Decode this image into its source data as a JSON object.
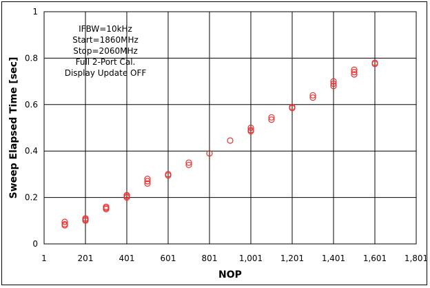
{
  "chart_data": {
    "type": "scatter",
    "xlabel": "NOP",
    "ylabel": "Sweep Elapsed Time [sec]",
    "xlim": [
      1,
      1801
    ],
    "ylim": [
      0,
      1
    ],
    "xticks": [
      1,
      201,
      401,
      601,
      801,
      1001,
      1201,
      1401,
      1601,
      1801
    ],
    "xtick_labels": [
      "1",
      "201",
      "401",
      "601",
      "801",
      "1,001",
      "1,201",
      "1,401",
      "1,601",
      "1,801"
    ],
    "yticks": [
      0,
      0.2,
      0.4,
      0.6,
      0.8,
      1
    ],
    "ytick_labels": [
      "0",
      "0.2",
      "0.4",
      "0.6",
      "0.8",
      "1"
    ],
    "grid": true,
    "marker_color": "#e8302f",
    "annotation": [
      "IFBW=10kHz",
      "Start=1860MHz",
      "Stop=2060MHz",
      "Full 2-Port Cal.",
      "Display Update OFF"
    ],
    "points": [
      {
        "x": 101,
        "y": 0.08
      },
      {
        "x": 101,
        "y": 0.085
      },
      {
        "x": 101,
        "y": 0.095
      },
      {
        "x": 201,
        "y": 0.1
      },
      {
        "x": 201,
        "y": 0.105
      },
      {
        "x": 201,
        "y": 0.11
      },
      {
        "x": 301,
        "y": 0.15
      },
      {
        "x": 301,
        "y": 0.155
      },
      {
        "x": 301,
        "y": 0.16
      },
      {
        "x": 401,
        "y": 0.2
      },
      {
        "x": 401,
        "y": 0.205
      },
      {
        "x": 401,
        "y": 0.21
      },
      {
        "x": 501,
        "y": 0.26
      },
      {
        "x": 501,
        "y": 0.27
      },
      {
        "x": 501,
        "y": 0.28
      },
      {
        "x": 601,
        "y": 0.295
      },
      {
        "x": 601,
        "y": 0.3
      },
      {
        "x": 701,
        "y": 0.34
      },
      {
        "x": 701,
        "y": 0.35
      },
      {
        "x": 801,
        "y": 0.39
      },
      {
        "x": 901,
        "y": 0.445
      },
      {
        "x": 1001,
        "y": 0.485
      },
      {
        "x": 1001,
        "y": 0.49
      },
      {
        "x": 1001,
        "y": 0.5
      },
      {
        "x": 1101,
        "y": 0.535
      },
      {
        "x": 1101,
        "y": 0.545
      },
      {
        "x": 1201,
        "y": 0.585
      },
      {
        "x": 1201,
        "y": 0.59
      },
      {
        "x": 1301,
        "y": 0.63
      },
      {
        "x": 1301,
        "y": 0.64
      },
      {
        "x": 1401,
        "y": 0.68
      },
      {
        "x": 1401,
        "y": 0.69
      },
      {
        "x": 1401,
        "y": 0.7
      },
      {
        "x": 1501,
        "y": 0.73
      },
      {
        "x": 1501,
        "y": 0.74
      },
      {
        "x": 1501,
        "y": 0.75
      },
      {
        "x": 1601,
        "y": 0.775
      },
      {
        "x": 1601,
        "y": 0.78
      }
    ]
  }
}
